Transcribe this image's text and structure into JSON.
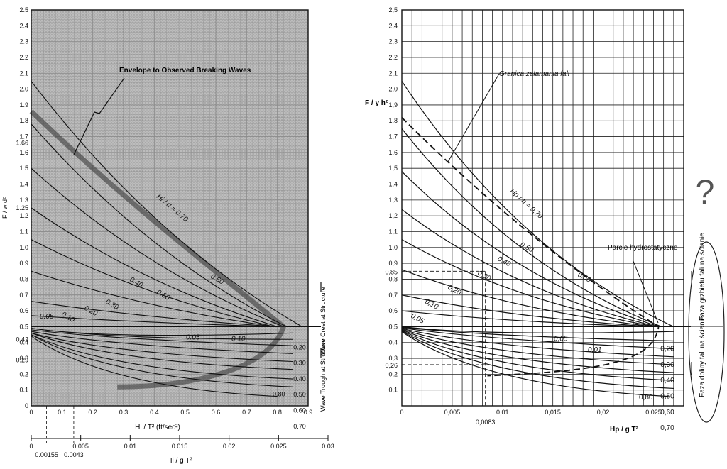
{
  "chart_data": [
    {
      "type": "line",
      "title": "",
      "xlabel": "Hi / T² (ft/sec²)",
      "ylabel": "F / w d²",
      "xlim": [
        0,
        0.9
      ],
      "ylim": [
        0,
        2.5
      ],
      "xticks": [
        "0",
        "0.1",
        "0.2",
        "0.3",
        "0.4",
        "0.5",
        "0.6",
        "0.7",
        "0.8",
        "0.9"
      ],
      "yticks": [
        "0",
        "0.1",
        "0.2",
        "0.3",
        "0.4",
        "0.5",
        "0.6",
        "0.7",
        "0.8",
        "0.9",
        "1.0",
        "1.1",
        "1.2",
        "1.3",
        "1.4",
        "1.5",
        "1.6",
        "1.7",
        "1.8",
        "1.9",
        "2.0",
        "2.1",
        "2.2",
        "2.3",
        "2.4",
        "2.5"
      ],
      "extra_yticks": [
        {
          "value": 1.66,
          "label": "1.66"
        },
        {
          "value": 1.25,
          "label": "1.25"
        },
        {
          "value": 0.42,
          "label": "0.42"
        },
        {
          "value": 0.29,
          "label": "0.29"
        }
      ],
      "secondary_xlabel": "Hi / g T²",
      "secondary_xticks": [
        "0",
        "0.005",
        "0.01",
        "0.015",
        "0.02",
        "0.025",
        "0.03"
      ],
      "secondary_xlim": [
        0,
        0.03
      ],
      "secondary_extra_ticks": [
        {
          "value": 0.00155,
          "label": "0.00155"
        },
        {
          "value": 0.0043,
          "label": "0.0043"
        }
      ],
      "envelope_label": "Envelope to Observed Breaking Waves",
      "ratio_label": "Hi / d = 0.70",
      "crest_label": "Wave Crest at Structure",
      "trough_label": "Wave Trough at Structure",
      "crest_series": [
        {
          "label": "0.70",
          "x": [
            0,
            0.88
          ],
          "y": [
            2.05,
            0.5
          ]
        },
        {
          "label": "0.60",
          "x": [
            0,
            0.83
          ],
          "y": [
            1.78,
            0.5
          ]
        },
        {
          "label": "0.50",
          "x": [
            0,
            0.82
          ],
          "y": [
            1.5,
            0.5
          ]
        },
        {
          "label": "0.40",
          "x": [
            0,
            0.8
          ],
          "y": [
            1.25,
            0.5
          ]
        },
        {
          "label": "0.30",
          "x": [
            0,
            0.79
          ],
          "y": [
            1.05,
            0.5
          ]
        },
        {
          "label": "0.20",
          "x": [
            0,
            0.79
          ],
          "y": [
            0.85,
            0.5
          ]
        },
        {
          "label": "0.10",
          "x": [
            0,
            0.8
          ],
          "y": [
            0.66,
            0.5
          ]
        },
        {
          "label": "0.05",
          "x": [
            0,
            0.8
          ],
          "y": [
            0.57,
            0.5
          ]
        }
      ],
      "trough_series": [
        {
          "label": "0.05",
          "x": [
            0,
            0.85
          ],
          "y": [
            0.49,
            0.46
          ]
        },
        {
          "label": "0.10",
          "x": [
            0,
            0.85
          ],
          "y": [
            0.49,
            0.42
          ]
        },
        {
          "label": "0.20",
          "x": [
            0,
            0.85
          ],
          "y": [
            0.48,
            0.38
          ]
        },
        {
          "label": "0.30",
          "x": [
            0,
            0.85
          ],
          "y": [
            0.47,
            0.33
          ]
        },
        {
          "label": "0.40",
          "x": [
            0,
            0.85
          ],
          "y": [
            0.46,
            0.28
          ]
        },
        {
          "label": "0.50",
          "x": [
            0,
            0.85
          ],
          "y": [
            0.46,
            0.23
          ]
        },
        {
          "label": "0.60",
          "x": [
            0,
            0.85
          ],
          "y": [
            0.45,
            0.17
          ]
        },
        {
          "label": "0.70",
          "x": [
            0,
            0.85
          ],
          "y": [
            0.45,
            0.12
          ]
        },
        {
          "label": "0.80",
          "x": [
            0,
            0.8
          ],
          "y": [
            0.44,
            0.06
          ]
        }
      ],
      "labels_right": [
        "0.20",
        "0.30",
        "0.40",
        "0.50",
        "0.60",
        "0.70"
      ],
      "labels_left": [
        "0.05"
      ],
      "labels_mid_trough": [
        "0.05",
        "0.10"
      ],
      "label_80": "0.80"
    },
    {
      "type": "line",
      "title": "",
      "xlabel": "Hp / g T²",
      "ylabel": "F / γ h²",
      "xlim": [
        0,
        0.028
      ],
      "ylim": [
        0,
        2.5
      ],
      "xticks": [
        "0",
        "0,005",
        "0,01",
        "0,015",
        "0,02",
        "0,025"
      ],
      "yticks": [
        "0,1",
        "0,2",
        "0,3",
        "0,4",
        "0,5",
        "0,6",
        "0,7",
        "0,8",
        "0,9",
        "1,0",
        "1,1",
        "1,2",
        "1,3",
        "1,4",
        "1,5",
        "1,6",
        "1,7",
        "1,8",
        "1,9",
        "2,0",
        "2,1",
        "2,2",
        "2,3",
        "2,4",
        "2,5"
      ],
      "extra_yticks": [
        {
          "value": 0.85,
          "label": "0,85"
        },
        {
          "value": 0.26,
          "label": "0,26"
        }
      ],
      "extra_xtick": {
        "value": 0.0083,
        "label": "0,0083"
      },
      "envelope_label": "Granica załamania fali",
      "ratio_label": "Hp / h = 0,70",
      "hydro_label": "Parcie hydrostatyczne",
      "crest_phase_label": "Faza grzbietu fali na ścianie",
      "trough_phase_label": "Faza doliny fali na ścianie",
      "question_mark": "?",
      "labels_right": [
        "0,20",
        "0,30",
        "0,40",
        "0,50",
        "0,60",
        "0,70"
      ],
      "crest_labels": [
        "0,05",
        "0,10",
        "0,20",
        "0,30",
        "0,40",
        "0,50",
        "0,60"
      ],
      "trough_labels": [
        "0,05",
        "0,01"
      ],
      "label_80": "0,80"
    }
  ]
}
